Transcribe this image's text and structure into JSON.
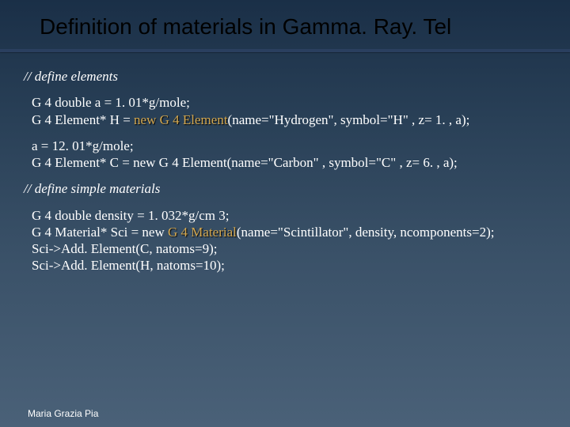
{
  "title": "Definition of materials in Gamma. Ray. Tel",
  "comment1": "// define elements",
  "line1": "G 4 double a = 1. 01*g/mole;",
  "line2a": "G 4 Element* H  = ",
  "line2_kw": "new G 4 Element",
  "line2b": "(name=\"Hydrogen\", symbol=\"H\" , z= 1. , a);",
  "line3": "a = 12. 01*g/mole;",
  "line4": "G 4 Element* C  = new G 4 Element(name=\"Carbon\"  , symbol=\"C\" , z= 6. , a);",
  "comment2": "// define simple materials",
  "line5": "G 4 double density = 1. 032*g/cm 3;",
  "line6a": "G 4 Material* Sci = new ",
  "line6_kw": "G 4 Material",
  "line6b": "(name=\"Scintillator\", density, ncomponents=2);",
  "line7": "Sci->Add. Element(C, natoms=9);",
  "line8": "Sci->Add. Element(H, natoms=10);",
  "footer": "Maria Grazia Pia",
  "colors": {
    "background_top": "#1a2f47",
    "background_bottom": "#4a6178",
    "title_color": "#000000",
    "text_color": "#ffffff",
    "highlight_color": "#d4a850",
    "divider_color": "#2a3f5f"
  },
  "typography": {
    "title_fontsize": 28,
    "body_fontsize": 17,
    "footer_fontsize": 12,
    "title_family": "Arial",
    "body_family": "Times New Roman"
  }
}
